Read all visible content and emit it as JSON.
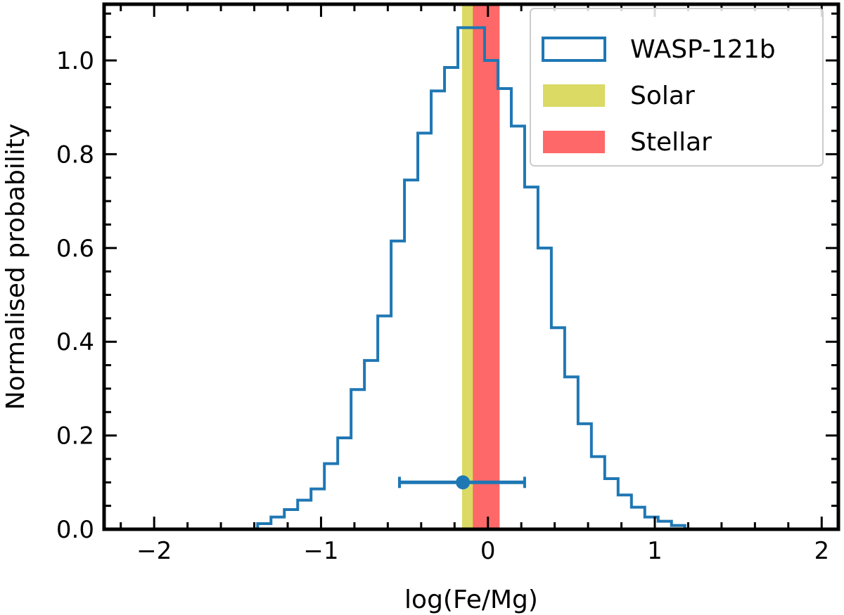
{
  "chart_data": {
    "type": "histogram",
    "title": "",
    "xlabel": "log(Fe/Mg)",
    "ylabel": "Normalised probability",
    "xlim": [
      -2.3,
      2.1
    ],
    "ylim": [
      0,
      1.12
    ],
    "x_ticks": [
      -2,
      -1,
      0,
      1,
      2
    ],
    "x_tick_labels": [
      "−2",
      "−1",
      "0",
      "1",
      "2"
    ],
    "y_ticks": [
      0.0,
      0.2,
      0.4,
      0.6,
      0.8,
      1.0
    ],
    "y_tick_labels": [
      "0.0",
      "0.2",
      "0.4",
      "0.6",
      "0.8",
      "1.0"
    ],
    "grid": false,
    "legend_position": "top-right",
    "series": [
      {
        "name": "WASP-121b",
        "style": "step",
        "color": "#1f77b4",
        "bin_edges": [
          -1.38,
          -1.3,
          -1.22,
          -1.14,
          -1.06,
          -0.98,
          -0.9,
          -0.82,
          -0.74,
          -0.66,
          -0.58,
          -0.5,
          -0.42,
          -0.34,
          -0.26,
          -0.18,
          -0.1,
          -0.02,
          0.06,
          0.14,
          0.22,
          0.3,
          0.38,
          0.46,
          0.54,
          0.62,
          0.7,
          0.78,
          0.86,
          0.94,
          1.02,
          1.1,
          1.18
        ],
        "values": [
          0.012,
          0.026,
          0.042,
          0.062,
          0.086,
          0.14,
          0.195,
          0.298,
          0.36,
          0.455,
          0.615,
          0.745,
          0.845,
          0.935,
          0.985,
          1.07,
          1.07,
          1.0,
          0.94,
          0.86,
          0.73,
          0.6,
          0.43,
          0.325,
          0.225,
          0.155,
          0.108,
          0.073,
          0.047,
          0.026,
          0.017,
          0.008
        ]
      }
    ],
    "bands": [
      {
        "name": "Solar",
        "x_range": [
          -0.155,
          -0.085
        ],
        "color": "#d4d44a"
      },
      {
        "name": "Stellar",
        "x_range": [
          -0.09,
          0.07
        ],
        "color": "#ff4d4d"
      }
    ],
    "errorbar": {
      "x": -0.15,
      "y": 0.1,
      "xerr_low": 0.38,
      "xerr_high": 0.37,
      "color": "#1f77b4"
    }
  }
}
